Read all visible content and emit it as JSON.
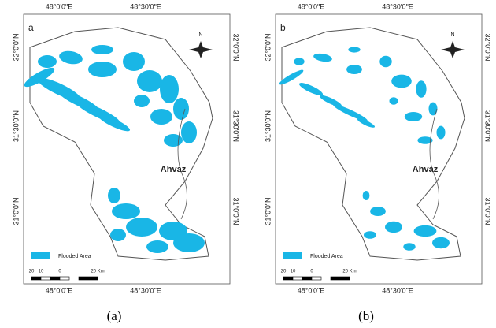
{
  "panels": [
    {
      "label": "a",
      "caption": "(a)",
      "top_labels": [
        "48°0'0\"E",
        "48°30'0\"E"
      ],
      "bottom_labels": [
        "48°0'0\"E",
        "48°30'0\"E"
      ],
      "left_labels": [
        "32°0'0\"N",
        "31°30'0\"N",
        "31°0'0\"N"
      ],
      "right_labels": [
        "32°0'0\"N",
        "31°30'0\"N",
        "31°0'0\"N"
      ],
      "north": "N",
      "city": "Ahvaz",
      "legend": "Flooded Area",
      "scale": [
        "20",
        "10",
        "0",
        "20 Km"
      ]
    },
    {
      "label": "b",
      "caption": "(b)",
      "top_labels": [
        "48°0'0\"E",
        "48°30'0\"E"
      ],
      "bottom_labels": [
        "48°0'0\"E",
        "48°30'0\"E"
      ],
      "left_labels": [
        "32°0'0\"N",
        "31°30'0\"N",
        "31°0'0\"N"
      ],
      "right_labels": [
        "32°0'0\"N",
        "31°30'0\"N",
        "31°0'0\"N"
      ],
      "north": "N",
      "city": "Ahvaz",
      "legend": "Flooded Area",
      "scale": [
        "20",
        "10",
        "0",
        "20 Km"
      ]
    }
  ]
}
